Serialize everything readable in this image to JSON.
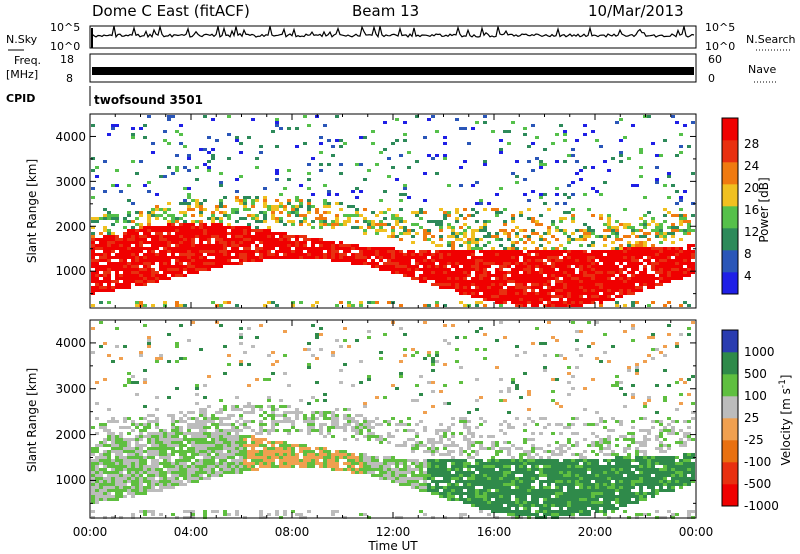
{
  "header": {
    "station": "Dome C East (fitACF)",
    "beam": "Beam 13",
    "date": "10/Mar/2013"
  },
  "strip": {
    "nsky_label": "N.Sky",
    "nsky_ticks": [
      "10^5",
      "10^0"
    ],
    "nsearch_label": "N.Search",
    "nsearch_ticks": [
      "10^5",
      "10^0"
    ],
    "freq_label": "Freq.",
    "freq_unit": "[MHz]",
    "freq_ticks": [
      "18",
      "8"
    ],
    "nave_label": "Nave",
    "nave_ticks": [
      "60",
      "0"
    ],
    "cpid_label": "CPID",
    "cpid_value": "twofsound 3501"
  },
  "colors": {
    "power": [
      "#1f1fe6",
      "#2a56b8",
      "#2d8a5a",
      "#55c04a",
      "#f0c020",
      "#f07a10",
      "#e83010",
      "#f00000"
    ],
    "velocity": [
      "#2a3cb0",
      "#2f8a4a",
      "#5fbf40",
      "#bcbcbc",
      "#f0a050",
      "#e87010",
      "#e83010",
      "#f00000"
    ]
  },
  "chart_data": [
    {
      "type": "heatmap",
      "name": "power-panel",
      "xlabel": "",
      "ylabel": "Slant Range [km]",
      "yticks": [
        "1000",
        "2000",
        "3000",
        "4000"
      ],
      "ylim": [
        180,
        4500
      ],
      "xlim": [
        0,
        24
      ],
      "colorbar_label": "Power [dB]",
      "colorbar_ticks": [
        "28",
        "24",
        "20",
        "16",
        "12",
        "8",
        "4"
      ],
      "colorbar_range": [
        0,
        32
      ]
    },
    {
      "type": "heatmap",
      "name": "velocity-panel",
      "xlabel": "Time UT",
      "ylabel": "Slant Range [km]",
      "yticks": [
        "1000",
        "2000",
        "3000",
        "4000"
      ],
      "ylim": [
        180,
        4500
      ],
      "xlim": [
        0,
        24
      ],
      "xticks": [
        "00:00",
        "04:00",
        "08:00",
        "12:00",
        "16:00",
        "20:00",
        "00:00"
      ],
      "colorbar_label": "Velocity [m s",
      "colorbar_superscript": "-1",
      "colorbar_unit_close": "]",
      "colorbar_ticks": [
        "1000",
        "500",
        "100",
        "25",
        "-25",
        "-100",
        "-500",
        "-1000"
      ]
    }
  ]
}
